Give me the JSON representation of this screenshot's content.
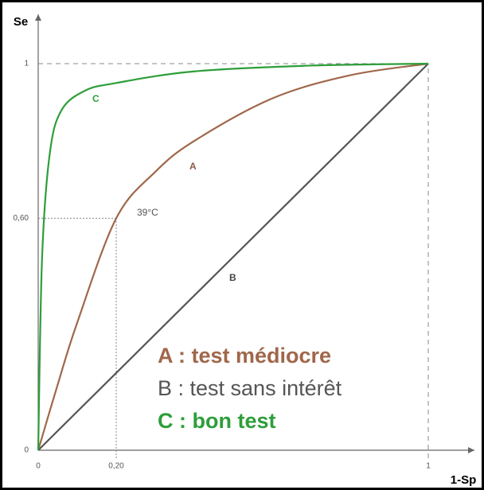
{
  "chart_data": {
    "type": "line",
    "y_label": "Se",
    "x_label": "1-Sp",
    "xlim": [
      0,
      1
    ],
    "ylim": [
      0,
      1
    ],
    "xticks": [
      0,
      {
        "value": 0.2,
        "label": "0,20"
      },
      1
    ],
    "yticks": [
      0,
      {
        "value": 0.6,
        "label": "0,60"
      },
      1
    ],
    "series": [
      {
        "name": "A : test médiocre",
        "color": "#a0674a",
        "x": [
          0,
          0.05,
          0.1,
          0.2,
          0.3,
          0.4,
          0.6,
          0.8,
          1
        ],
        "values": [
          0,
          0.17,
          0.33,
          0.6,
          0.72,
          0.8,
          0.91,
          0.97,
          1
        ]
      },
      {
        "name": "B : test sans intérêt",
        "color": "#555555",
        "x": [
          0,
          1
        ],
        "values": [
          0,
          1
        ]
      },
      {
        "name": "C : bon test",
        "color": "#2e9e3a",
        "x": [
          0,
          0.01,
          0.03,
          0.06,
          0.12,
          0.2,
          0.4,
          0.7,
          1
        ],
        "values": [
          0,
          0.5,
          0.77,
          0.88,
          0.93,
          0.95,
          0.98,
          0.995,
          1
        ]
      }
    ],
    "annotations": [
      "A",
      "B",
      "C",
      "39°C"
    ]
  }
}
